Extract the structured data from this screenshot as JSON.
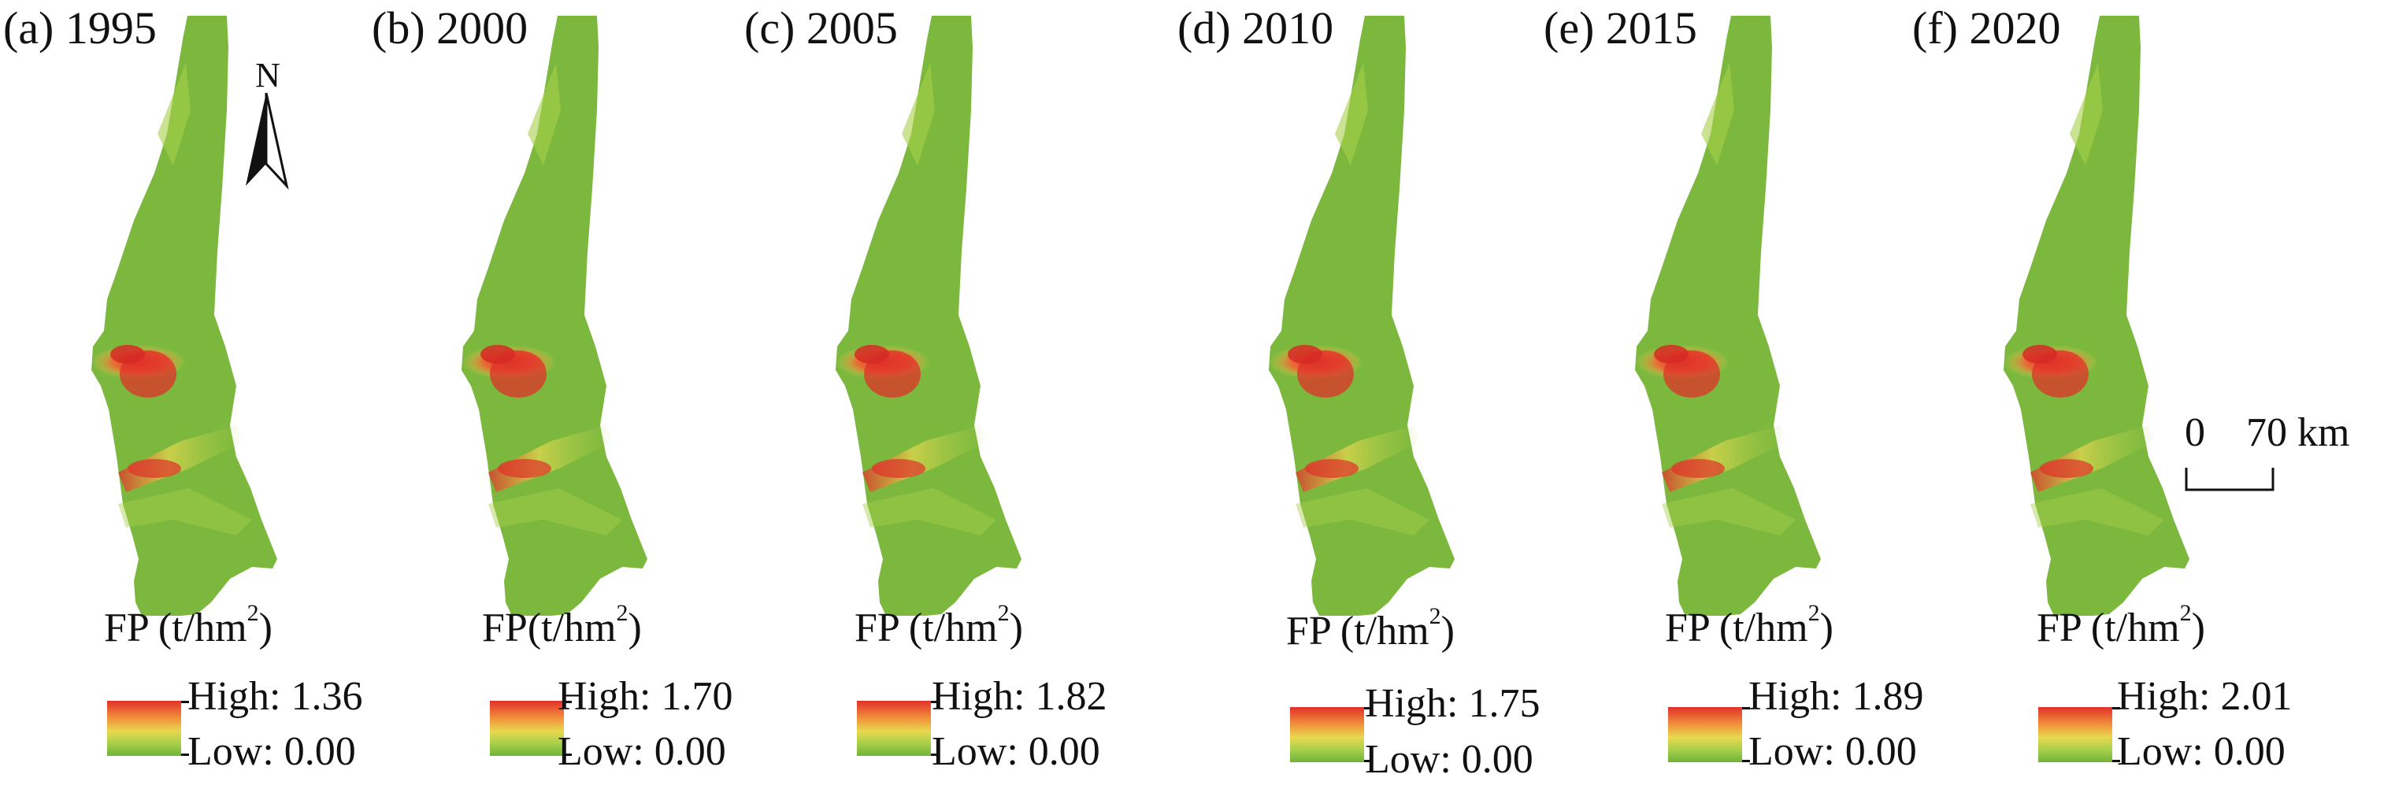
{
  "legend_colors": {
    "high": "#e0302a",
    "mid": "#e8d84e",
    "low": "#6fb33a"
  },
  "panels": [
    {
      "title": "(a) 1995",
      "legend_title": "FP (t/hm",
      "legend_unit_sup": "2",
      "legend_close": ")",
      "high_label": "High: 1.36",
      "low_label": "Low: 0.00"
    },
    {
      "title": "(b) 2000",
      "legend_title": "FP(t/hm",
      "legend_unit_sup": "2",
      "legend_close": ")",
      "high_label": "High: 1.70",
      "low_label": "Low: 0.00"
    },
    {
      "title": "(c) 2005",
      "legend_title": "FP (t/hm",
      "legend_unit_sup": "2",
      "legend_close": ")",
      "high_label": "High: 1.82",
      "low_label": "Low: 0.00"
    },
    {
      "title": "(d) 2010",
      "legend_title": "FP (t/hm",
      "legend_unit_sup": "2",
      "legend_close": ")",
      "high_label": "High: 1.75",
      "low_label": "Low: 0.00"
    },
    {
      "title": "(e) 2015",
      "legend_title": "FP (t/hm",
      "legend_unit_sup": "2",
      "legend_close": ")",
      "high_label": "High: 1.89",
      "low_label": "Low: 0.00"
    },
    {
      "title": "(f) 2020",
      "legend_title": "FP (t/hm",
      "legend_unit_sup": "2",
      "legend_close": ")",
      "high_label": "High: 2.01",
      "low_label": "Low: 0.00"
    }
  ],
  "north_arrow": {
    "label": "N",
    "icon": "north-arrow-icon"
  },
  "scale_bar": {
    "zero_label": "0",
    "distance_label": "70 km"
  }
}
